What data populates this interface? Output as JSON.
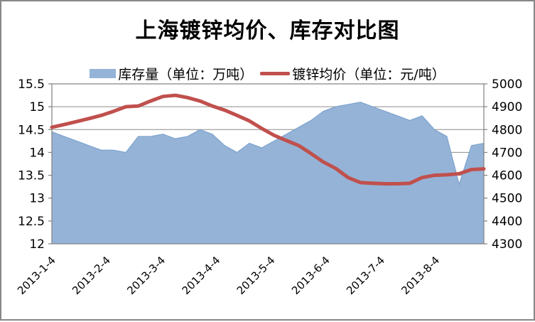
{
  "chart_data": {
    "type": "combo",
    "title": "上海镀锌均价、库存对比图",
    "grid": true,
    "legend_position": "top",
    "x_tick_labels": [
      "2013-1-4",
      "2013-2-4",
      "2013-3-4",
      "2013-4-4",
      "2013-5-4",
      "2013-6-4",
      "2013-7-4",
      "2013-8-4"
    ],
    "left_axis": {
      "min": 12,
      "max": 15.5,
      "step": 0.5,
      "tick_labels": [
        "15.5",
        "15",
        "14.5",
        "14",
        "13.5",
        "13",
        "12.5",
        "12"
      ]
    },
    "right_axis": {
      "min": 4300,
      "max": 5000,
      "step": 100,
      "tick_labels": [
        "5000",
        "4900",
        "4800",
        "4700",
        "4600",
        "4500",
        "4400",
        "4300"
      ]
    },
    "series": [
      {
        "name": "库存量（单位：万吨）",
        "type": "area",
        "axis": "left",
        "color": "#95B3D7",
        "edge_color": "#7DA3CE",
        "values": [
          14.45,
          14.35,
          14.25,
          14.15,
          14.05,
          14.05,
          14.0,
          14.35,
          14.35,
          14.4,
          14.3,
          14.35,
          14.5,
          14.4,
          14.15,
          14.0,
          14.2,
          14.1,
          14.25,
          14.4,
          14.55,
          14.7,
          14.9,
          15.0,
          15.05,
          15.1,
          15.0,
          14.9,
          14.8,
          14.7,
          14.8,
          14.5,
          14.35,
          13.3,
          14.15,
          14.2
        ]
      },
      {
        "name": "镀锌均价（单位：元/吨）",
        "type": "line",
        "axis": "right",
        "color": "#C0504D",
        "values": [
          4810,
          4822,
          4835,
          4848,
          4862,
          4880,
          4900,
          4903,
          4925,
          4945,
          4950,
          4940,
          4925,
          4903,
          4885,
          4862,
          4838,
          4805,
          4775,
          4752,
          4730,
          4695,
          4658,
          4630,
          4590,
          4568,
          4565,
          4563,
          4563,
          4565,
          4590,
          4600,
          4602,
          4607,
          4625,
          4628
        ]
      }
    ],
    "colors": {
      "gridline": "#8C8C8C",
      "plot_border": "#808080",
      "frame_border": "#878787"
    }
  }
}
